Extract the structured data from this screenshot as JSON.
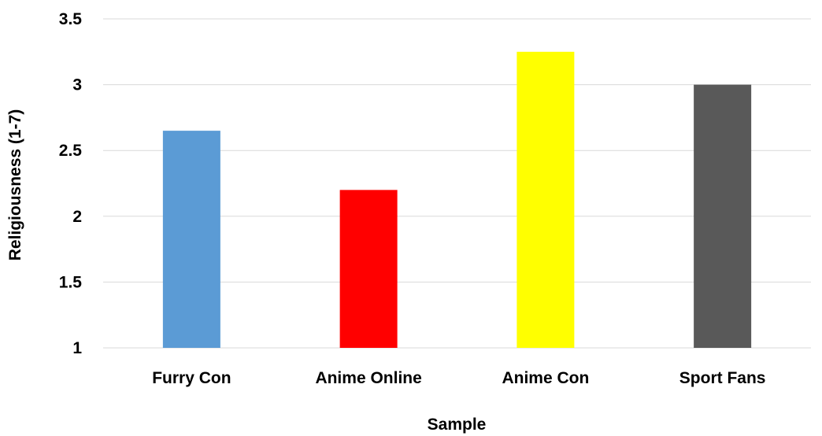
{
  "chart_data": {
    "type": "bar",
    "title": "",
    "xlabel": "Sample",
    "ylabel": "Religiousness (1-7)",
    "categories": [
      "Furry Con",
      "Anime Online",
      "Anime Con",
      "Sport Fans"
    ],
    "values": [
      2.65,
      2.2,
      3.25,
      3.0
    ],
    "colors": [
      "#5b9bd5",
      "#ff0000",
      "#ffff00",
      "#595959"
    ],
    "ylim": [
      1,
      3.5
    ],
    "yticks": [
      "1",
      "1.5",
      "2",
      "2.5",
      "3",
      "3.5"
    ],
    "grid": true,
    "legend": "none"
  }
}
